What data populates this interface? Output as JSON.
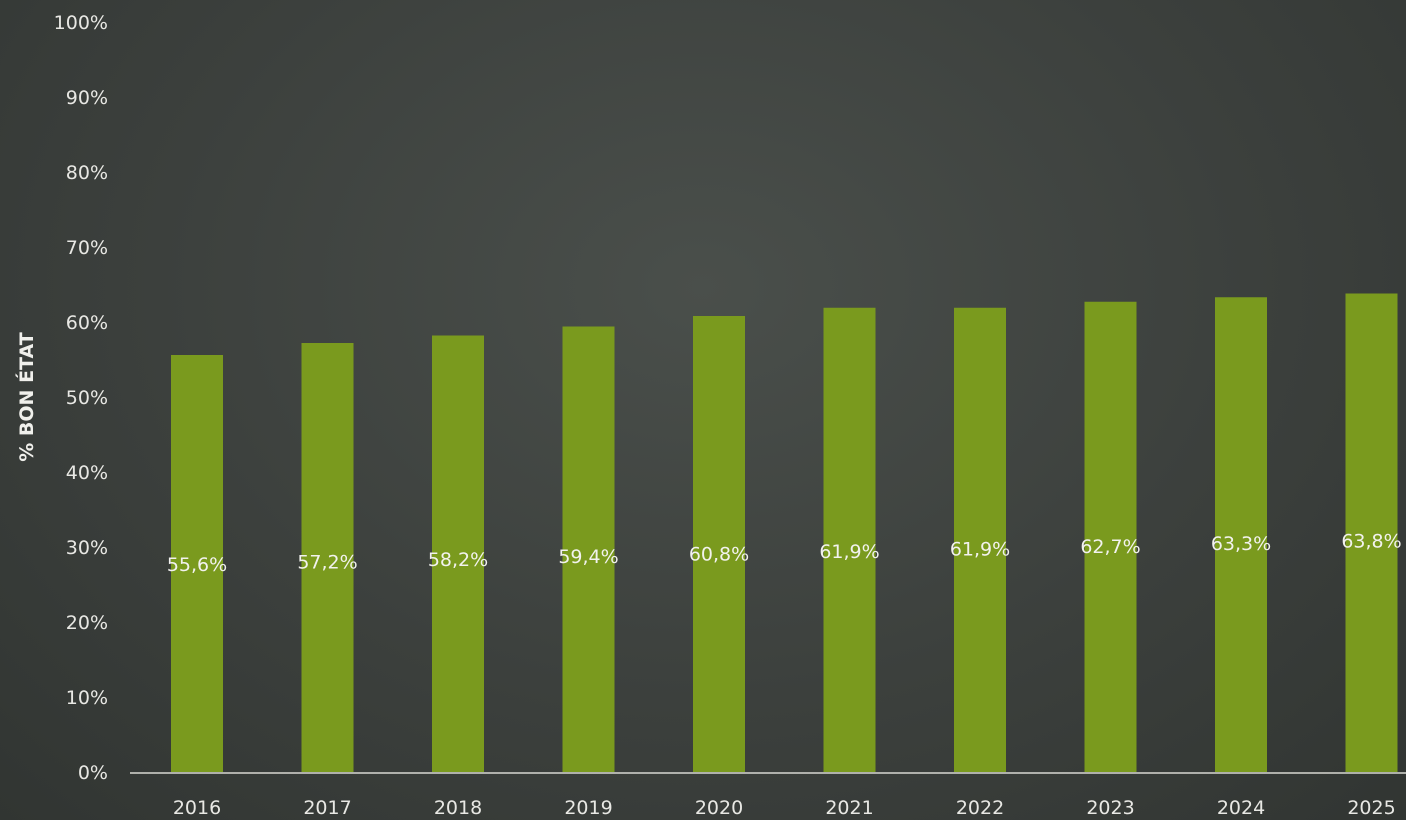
{
  "chart_data": {
    "type": "bar",
    "categories": [
      "2016",
      "2017",
      "2018",
      "2019",
      "2020",
      "2021",
      "2022",
      "2023",
      "2024",
      "2025"
    ],
    "values": [
      55.6,
      57.2,
      58.2,
      59.4,
      60.8,
      61.9,
      61.9,
      62.7,
      63.3,
      63.8
    ],
    "data_labels": [
      "55,6%",
      "57,2%",
      "58,2%",
      "59,4%",
      "60,8%",
      "61,9%",
      "61,9%",
      "62,7%",
      "63,3%",
      "63,8%"
    ],
    "title": "",
    "xlabel": "",
    "ylabel": "% BON ÉTAT",
    "ylim": [
      0,
      100
    ],
    "yticks": [
      0,
      10,
      20,
      30,
      40,
      50,
      60,
      70,
      80,
      90,
      100
    ],
    "ytick_labels": [
      "0%",
      "10%",
      "20%",
      "30%",
      "40%",
      "50%",
      "60%",
      "70%",
      "80%",
      "90%",
      "100%"
    ],
    "grid": false,
    "legend": "none",
    "colors": {
      "bar": "#7a9a1e",
      "background": "#3d413e",
      "baseline": "#d8d8d2",
      "text": "#ececea"
    }
  }
}
